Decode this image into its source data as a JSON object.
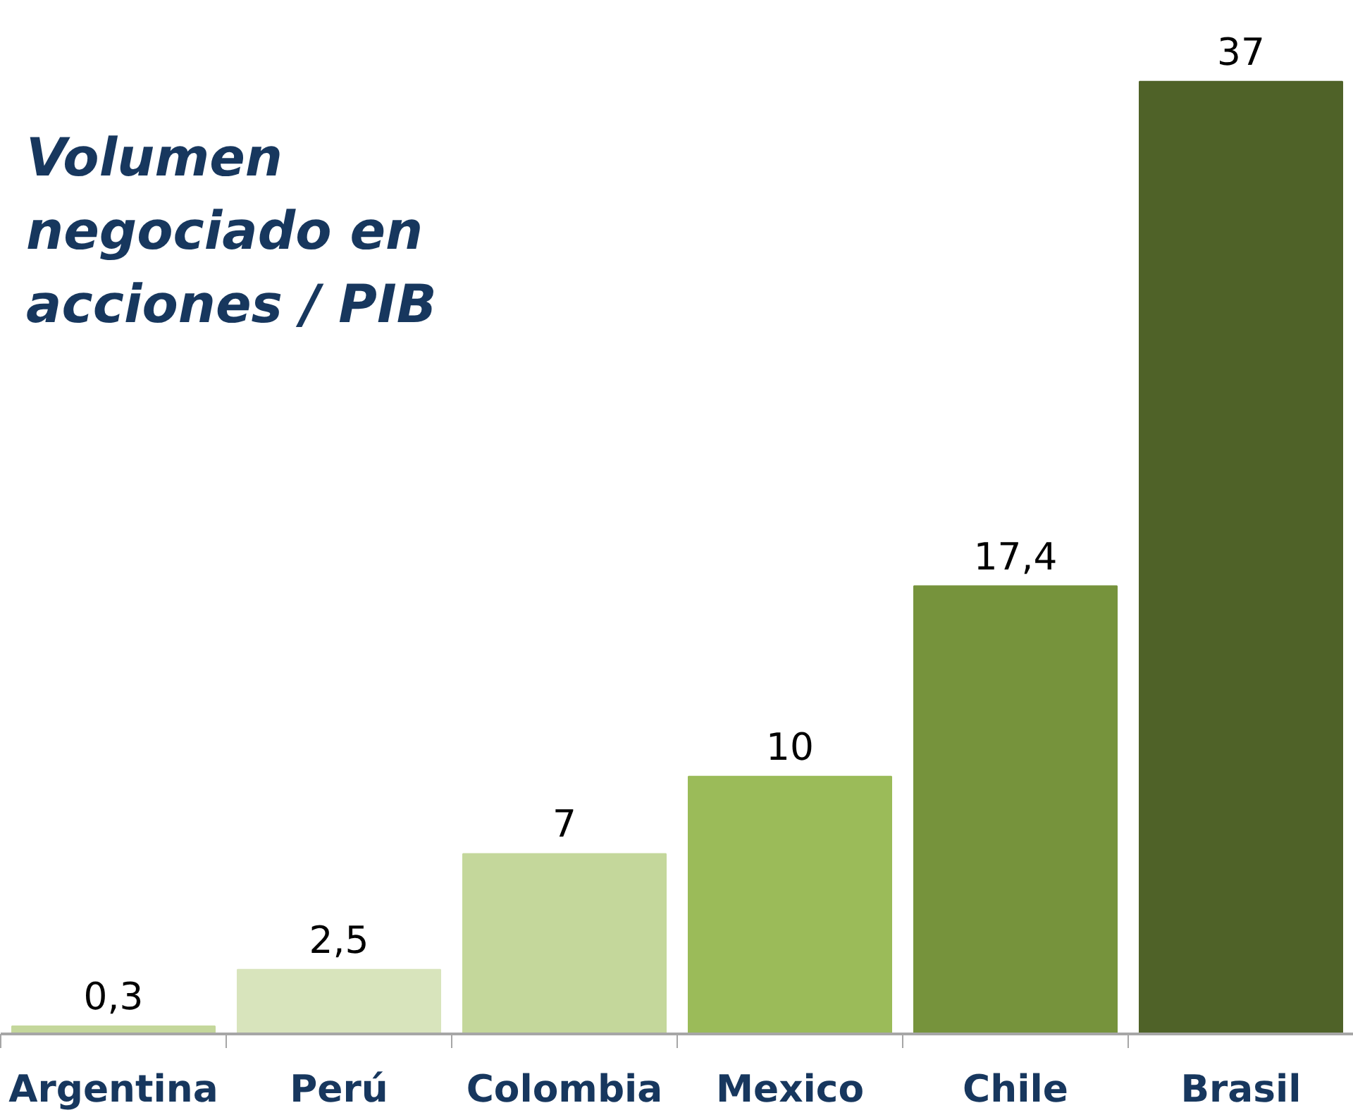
{
  "chart_data": {
    "type": "bar",
    "title": "Volumen negociado en acciones / PIB",
    "categories": [
      "Argentina",
      "Perú",
      "Colombia",
      "Mexico",
      "Chile",
      "Brasil"
    ],
    "values": [
      0.3,
      2.5,
      7,
      10,
      17.4,
      37
    ],
    "colors": [
      "#c4d79b",
      "#d8e4bc",
      "#c4d79b",
      "#9bbb59",
      "#76933c",
      "#4f6228"
    ],
    "value_labels": [
      "0,3",
      "2,5",
      "7",
      "10",
      "17,4",
      "37"
    ],
    "grid": false
  }
}
